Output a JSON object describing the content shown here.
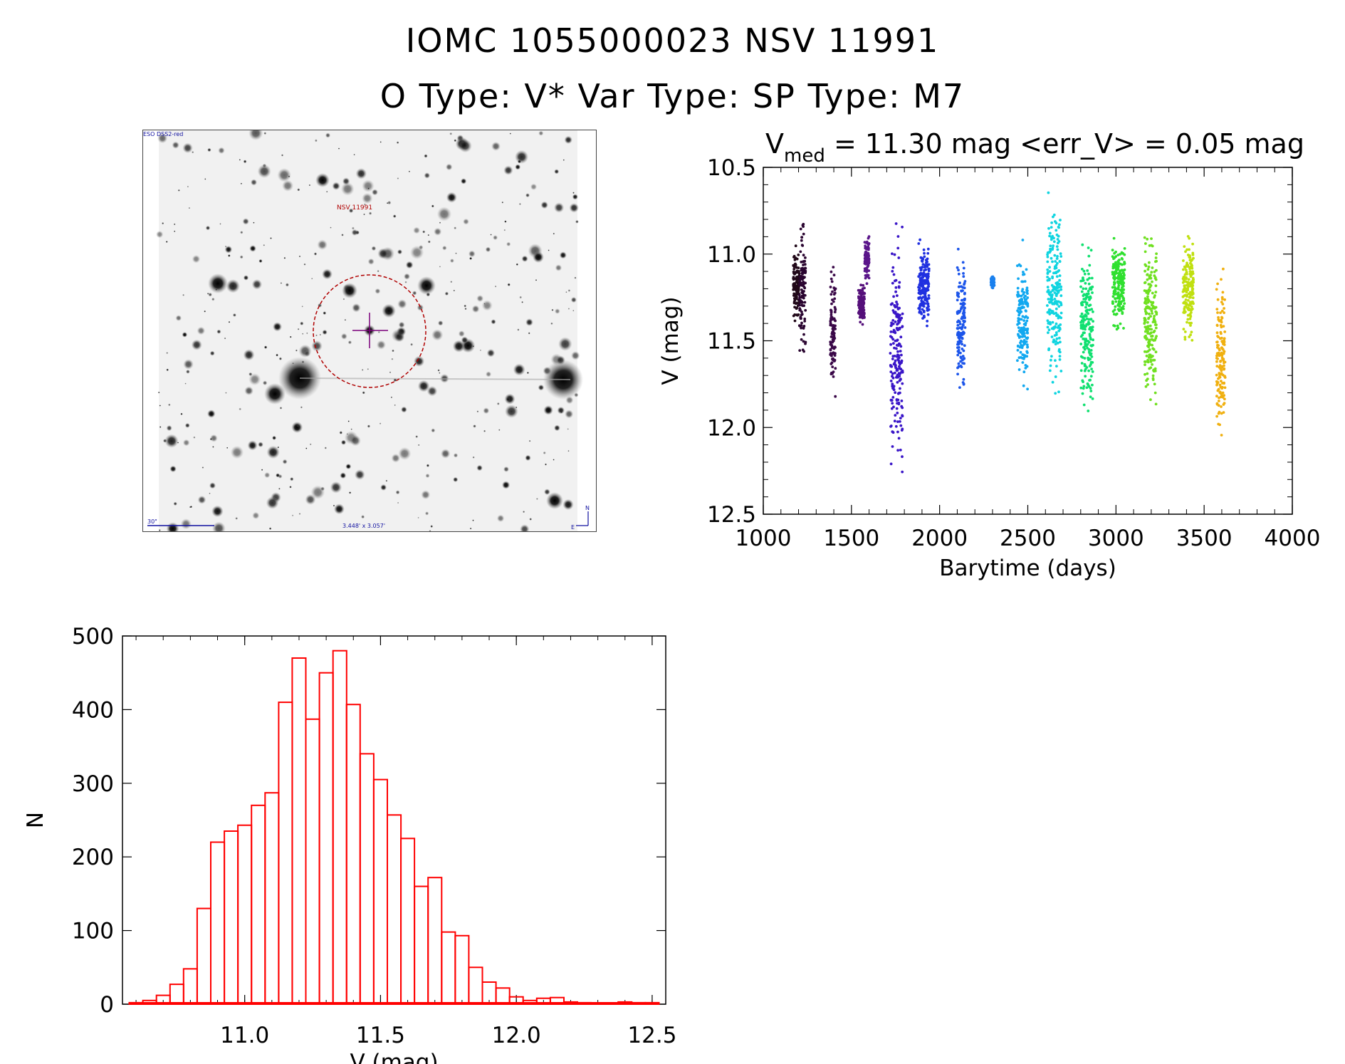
{
  "header": {
    "title_line1": "IOMC 1055000023    NSV 11991",
    "title_line2": "O Type: V*  Var Type:    SP Type: M7"
  },
  "finder_chart": {
    "survey_label": "ESO DSS2-red",
    "target_label": "NSV 11991",
    "scale_label": "30\"",
    "size_label": "3.448' x 3.057'",
    "north_label": "N",
    "east_label": "E"
  },
  "chart_data": [
    {
      "type": "scatter",
      "title_prefix": "V",
      "title_subscript": "med",
      "title_rest": " = 11.30 mag <err_V> = 0.05 mag",
      "xlabel": "Barytime (days)",
      "ylabel": "V (mag)",
      "xlim": [
        1000,
        4000
      ],
      "ylim": [
        12.5,
        10.5
      ],
      "y_inverted": true,
      "xticks": [
        "1000",
        "1500",
        "2000",
        "2500",
        "3000",
        "3500",
        "4000"
      ],
      "yticks": [
        "10.5",
        "11.0",
        "11.5",
        "12.0",
        "12.5"
      ],
      "color_scale": "time (black to blue to cyan to green to yellow to orange)",
      "seasons": [
        {
          "x": [
            1170,
            1205
          ],
          "ymin": 10.9,
          "ymax": 11.45,
          "color": "#200818"
        },
        {
          "x": [
            1205,
            1240
          ],
          "ymin": 10.75,
          "ymax": 11.7,
          "color": "#2a0530"
        },
        {
          "x": [
            1380,
            1410
          ],
          "ymin": 11.0,
          "ymax": 11.9,
          "color": "#3a0848"
        },
        {
          "x": [
            1540,
            1575
          ],
          "ymin": 11.15,
          "ymax": 11.45,
          "color": "#55107a"
        },
        {
          "x": [
            1575,
            1600
          ],
          "ymin": 10.85,
          "ymax": 11.2,
          "color": "#5a158a"
        },
        {
          "x": [
            1720,
            1790
          ],
          "ymin": 10.75,
          "ymax": 12.45,
          "color": "#3a16c8"
        },
        {
          "x": [
            1880,
            1940
          ],
          "ymin": 10.85,
          "ymax": 11.5,
          "color": "#2030e0"
        },
        {
          "x": [
            2100,
            2145
          ],
          "ymin": 10.85,
          "ymax": 11.9,
          "color": "#1c55ea"
        },
        {
          "x": [
            2290,
            2310
          ],
          "ymin": 11.12,
          "ymax": 11.2,
          "color": "#1a80ee"
        },
        {
          "x": [
            2440,
            2500
          ],
          "ymin": 10.9,
          "ymax": 11.85,
          "color": "#12a8f0"
        },
        {
          "x": [
            2610,
            2690
          ],
          "ymin": 10.55,
          "ymax": 11.9,
          "color": "#10d4e0"
        },
        {
          "x": [
            2800,
            2870
          ],
          "ymin": 10.85,
          "ymax": 12.0,
          "color": "#10e070"
        },
        {
          "x": [
            2980,
            3050
          ],
          "ymin": 10.85,
          "ymax": 11.5,
          "color": "#30e030"
        },
        {
          "x": [
            3160,
            3230
          ],
          "ymin": 10.75,
          "ymax": 11.95,
          "color": "#70e020"
        },
        {
          "x": [
            3380,
            3440
          ],
          "ymin": 10.8,
          "ymax": 11.6,
          "color": "#c0e010"
        },
        {
          "x": [
            3570,
            3620
          ],
          "ymin": 11.0,
          "ymax": 12.2,
          "color": "#f0b010"
        }
      ]
    },
    {
      "type": "bar",
      "subtype": "histogram",
      "xlabel": "V (mag)",
      "ylabel": "N",
      "xlim": [
        10.55,
        12.55
      ],
      "ylim": [
        0,
        500
      ],
      "xticks": [
        "11.0",
        "11.5",
        "12.0",
        "12.5"
      ],
      "yticks": [
        "0",
        "100",
        "200",
        "300",
        "400",
        "500"
      ],
      "bin_width": 0.05,
      "bin_starts": [
        10.575,
        10.625,
        10.675,
        10.725,
        10.775,
        10.825,
        10.875,
        10.925,
        10.975,
        11.025,
        11.075,
        11.125,
        11.175,
        11.225,
        11.275,
        11.325,
        11.375,
        11.425,
        11.475,
        11.525,
        11.575,
        11.625,
        11.675,
        11.725,
        11.775,
        11.825,
        11.875,
        11.925,
        11.975,
        12.025,
        12.075,
        12.125,
        12.175,
        12.225,
        12.275,
        12.325,
        12.375,
        12.425,
        12.475
      ],
      "values": [
        2,
        5,
        12,
        27,
        48,
        130,
        220,
        235,
        243,
        270,
        287,
        410,
        470,
        387,
        450,
        480,
        407,
        340,
        305,
        257,
        225,
        160,
        172,
        98,
        93,
        50,
        30,
        22,
        10,
        5,
        8,
        9,
        3,
        2,
        1,
        1,
        3,
        2,
        2
      ],
      "color": "#ff0000"
    }
  ]
}
